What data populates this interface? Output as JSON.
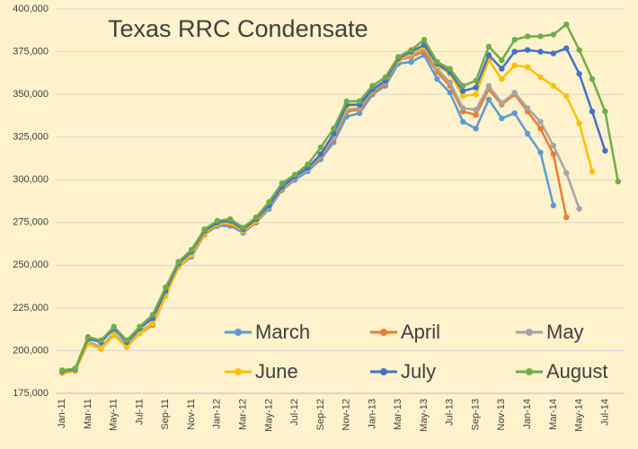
{
  "chart_data": {
    "type": "line",
    "title": "Texas RRC Condensate",
    "categories": [
      "Jan-11",
      null,
      "Mar-11",
      null,
      "May-11",
      null,
      "Jul-11",
      null,
      "Sep-11",
      null,
      "Nov-11",
      null,
      "Jan-12",
      null,
      "Mar-12",
      null,
      "May-12",
      null,
      "Jul-12",
      null,
      "Sep-12",
      null,
      "Nov-12",
      null,
      "Jan-13",
      null,
      "Mar-13",
      null,
      "May-13",
      null,
      "Jul-13",
      null,
      "Sep-13",
      null,
      "Nov-13",
      null,
      "Jan-14",
      null,
      "Mar-14",
      null,
      "May-14",
      null,
      "Jul-14",
      null
    ],
    "series": [
      {
        "name": "March",
        "color": "#5b9bd5",
        "values": [
          187000,
          188000,
          205000,
          202000,
          210000,
          203000,
          211000,
          216000,
          232000,
          249000,
          255000,
          268000,
          273000,
          273000,
          269000,
          275000,
          283000,
          294000,
          300000,
          305000,
          312000,
          322000,
          337000,
          339000,
          350000,
          355000,
          368000,
          369000,
          373000,
          359000,
          351000,
          334000,
          330000,
          347000,
          336000,
          339000,
          327000,
          316000,
          285000,
          null,
          null,
          null,
          null,
          null
        ]
      },
      {
        "name": "April",
        "color": "#ed7d31",
        "values": [
          187000,
          188000,
          205000,
          201000,
          209000,
          203000,
          210000,
          215000,
          232000,
          249000,
          256000,
          268000,
          274000,
          274000,
          270000,
          275000,
          284000,
          294000,
          301000,
          306000,
          313000,
          324000,
          340000,
          341000,
          351000,
          356000,
          370000,
          372000,
          375000,
          363000,
          355000,
          340000,
          338000,
          353000,
          344000,
          350000,
          340000,
          330000,
          315000,
          278000,
          null,
          null,
          null,
          null
        ]
      },
      {
        "name": "May",
        "color": "#a5a5a5",
        "values": [
          187500,
          188500,
          205500,
          202000,
          210000,
          203500,
          211000,
          216000,
          233000,
          250000,
          256000,
          269000,
          274000,
          275000,
          270000,
          276000,
          284000,
          295000,
          301000,
          306000,
          314000,
          325000,
          341000,
          342000,
          352000,
          357000,
          370000,
          373000,
          377000,
          365000,
          357000,
          342000,
          341000,
          355000,
          345000,
          351000,
          342000,
          334000,
          320000,
          304000,
          283000,
          null,
          null,
          null
        ]
      },
      {
        "name": "June",
        "color": "#ffc000",
        "values": [
          187500,
          188000,
          204000,
          201000,
          209000,
          202000,
          210000,
          216000,
          232000,
          249000,
          256000,
          269000,
          274000,
          275000,
          270000,
          276000,
          285000,
          296000,
          302000,
          307000,
          315000,
          327000,
          343000,
          344000,
          353000,
          358000,
          370000,
          374000,
          378000,
          367000,
          362000,
          349000,
          350000,
          370000,
          359000,
          367000,
          366000,
          360000,
          355000,
          349000,
          333000,
          305000,
          null,
          null
        ]
      },
      {
        "name": "July",
        "color": "#4472c4",
        "values": [
          188000,
          189000,
          207000,
          205000,
          213000,
          205000,
          213000,
          219000,
          235000,
          251000,
          258000,
          270000,
          275000,
          276000,
          271000,
          277000,
          285000,
          296000,
          302000,
          307000,
          315000,
          327000,
          344000,
          344000,
          353000,
          358000,
          371000,
          375000,
          379000,
          368000,
          363000,
          352000,
          354000,
          373000,
          365000,
          375000,
          376000,
          375000,
          374000,
          377000,
          362000,
          340000,
          317000,
          null
        ]
      },
      {
        "name": "August",
        "color": "#70ad47",
        "values": [
          188500,
          189500,
          208000,
          206000,
          214000,
          206000,
          214000,
          221000,
          237000,
          252000,
          259000,
          271000,
          276000,
          277000,
          272000,
          278000,
          287000,
          298000,
          303000,
          309000,
          319000,
          330000,
          346000,
          346000,
          355000,
          360000,
          372000,
          376000,
          382000,
          369000,
          365000,
          355000,
          358000,
          378000,
          370000,
          382000,
          384000,
          384000,
          385000,
          391000,
          376000,
          359000,
          340000,
          299000
        ]
      }
    ],
    "ylim": [
      175000,
      400000
    ],
    "yticks": [
      {
        "value": 175000,
        "label": "175,000"
      },
      {
        "value": 200000,
        "label": "200,000"
      },
      {
        "value": 225000,
        "label": "225,000"
      },
      {
        "value": 250000,
        "label": "250,000"
      },
      {
        "value": 275000,
        "label": "275,000"
      },
      {
        "value": 300000,
        "label": "300,000"
      },
      {
        "value": 325000,
        "label": "325,000"
      },
      {
        "value": 350000,
        "label": "350,000"
      },
      {
        "value": 375000,
        "label": "375,000"
      },
      {
        "value": 400000,
        "label": "400,000"
      }
    ],
    "grid": true,
    "legend_position": "bottom-right",
    "background": "#fff2cc"
  }
}
